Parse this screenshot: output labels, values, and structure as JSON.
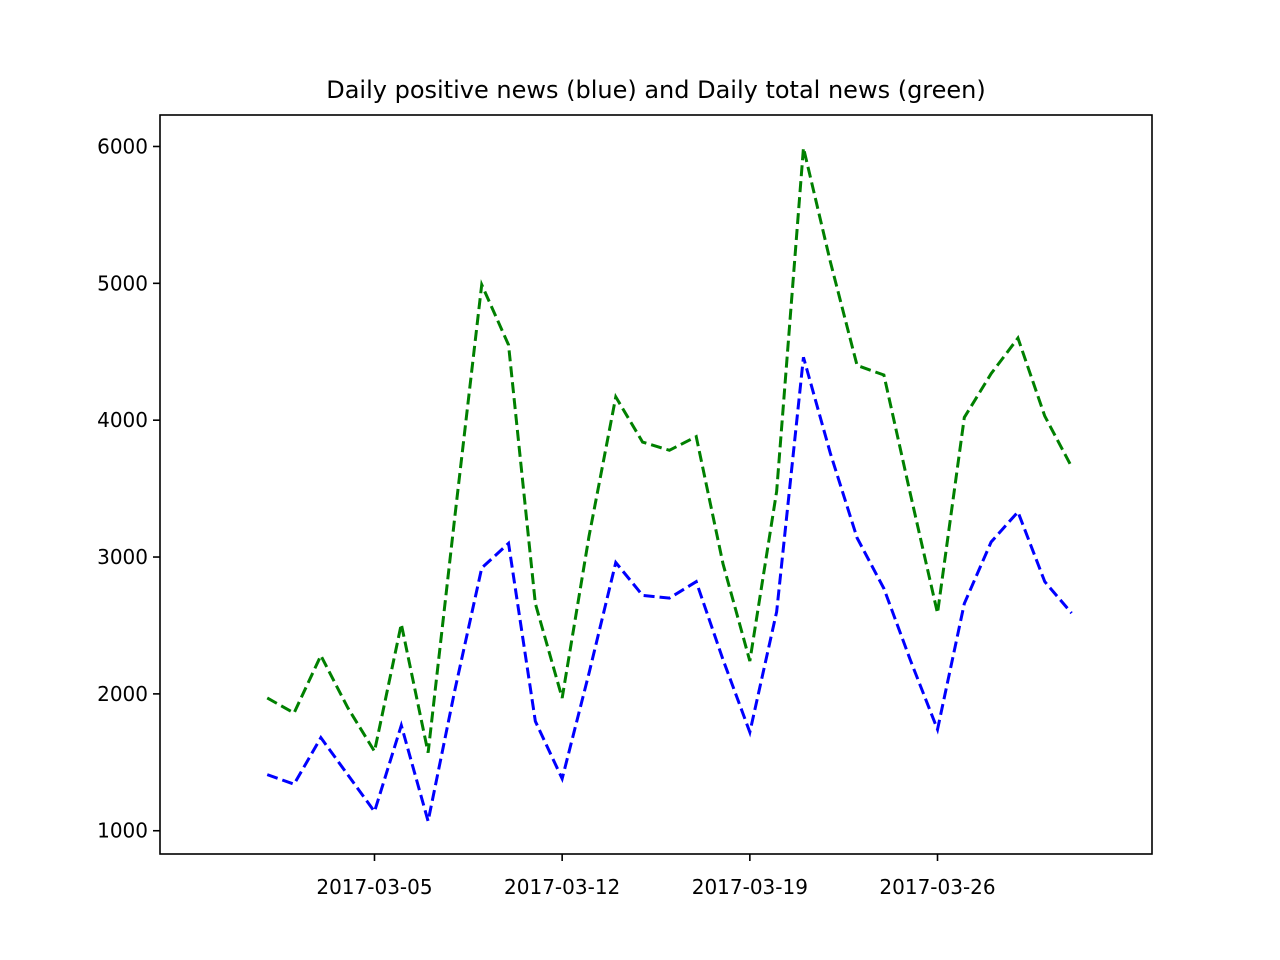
{
  "chart_data": {
    "type": "line",
    "title": "Daily positive news (blue) and Daily total news (green)",
    "xlabel": "",
    "ylabel": "",
    "x": [
      "2017-03-01",
      "2017-03-02",
      "2017-03-03",
      "2017-03-04",
      "2017-03-05",
      "2017-03-06",
      "2017-03-07",
      "2017-03-08",
      "2017-03-09",
      "2017-03-10",
      "2017-03-11",
      "2017-03-12",
      "2017-03-13",
      "2017-03-14",
      "2017-03-15",
      "2017-03-16",
      "2017-03-17",
      "2017-03-18",
      "2017-03-19",
      "2017-03-20",
      "2017-03-21",
      "2017-03-22",
      "2017-03-23",
      "2017-03-24",
      "2017-03-25",
      "2017-03-26",
      "2017-03-27",
      "2017-03-28",
      "2017-03-29",
      "2017-03-30",
      "2017-03-31"
    ],
    "xticks": [
      "2017-03-05",
      "2017-03-12",
      "2017-03-19",
      "2017-03-26"
    ],
    "xlim": [
      "2017-02-25",
      "2017-04-03"
    ],
    "ylim": [
      830,
      6230
    ],
    "yticks": [
      1000,
      2000,
      3000,
      4000,
      5000,
      6000
    ],
    "grid": false,
    "series": [
      {
        "color": "#0000ff",
        "style": "dashed",
        "values": [
          1410,
          1340,
          1680,
          1410,
          1140,
          1770,
          1070,
          2030,
          2920,
          3100,
          1800,
          1380,
          2150,
          2960,
          2720,
          2700,
          2820,
          2250,
          1720,
          2600,
          4460,
          3760,
          3140,
          2770,
          2240,
          1740,
          2660,
          3110,
          3330,
          2820,
          2590
        ]
      },
      {
        "color": "#008000",
        "style": "dashed",
        "values": [
          1970,
          1860,
          2280,
          1900,
          1580,
          2510,
          1570,
          3300,
          4990,
          4550,
          2660,
          1970,
          3150,
          4170,
          3840,
          3780,
          3880,
          2950,
          2240,
          3480,
          5990,
          5160,
          4400,
          4330,
          3450,
          2590,
          4020,
          4340,
          4600,
          4030,
          3660
        ]
      }
    ]
  }
}
